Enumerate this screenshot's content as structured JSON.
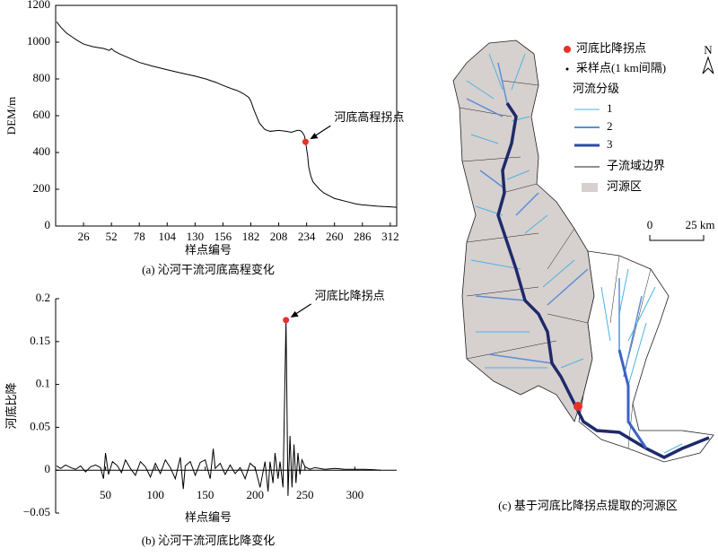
{
  "chart_data": [
    {
      "type": "line",
      "caption": "(a) 沁河干流河底高程变化",
      "ylabel": "DEM/m",
      "xlabel": "样点编号",
      "x": [
        1,
        5,
        10,
        15,
        20,
        26,
        35,
        45,
        50,
        52,
        55,
        60,
        70,
        78,
        90,
        104,
        115,
        130,
        140,
        150,
        156,
        165,
        170,
        175,
        180,
        182,
        185,
        190,
        195,
        200,
        208,
        215,
        220,
        225,
        228,
        230,
        232,
        233,
        234,
        235,
        236,
        238,
        240,
        243,
        246,
        250,
        255,
        260,
        270,
        280,
        286,
        300,
        312,
        318
      ],
      "values": [
        1110,
        1080,
        1050,
        1030,
        1010,
        990,
        975,
        965,
        955,
        965,
        950,
        935,
        910,
        890,
        870,
        850,
        835,
        815,
        800,
        780,
        765,
        745,
        735,
        720,
        700,
        680,
        630,
        560,
        525,
        515,
        520,
        515,
        510,
        520,
        520,
        510,
        490,
        458,
        420,
        380,
        320,
        270,
        240,
        220,
        200,
        180,
        165,
        150,
        135,
        120,
        115,
        108,
        104,
        102
      ],
      "color": "#000000",
      "xlim": [
        0,
        318
      ],
      "xticks": [
        26,
        52,
        78,
        104,
        130,
        156,
        182,
        208,
        234,
        260,
        286,
        312
      ],
      "ylim": [
        0,
        1200
      ],
      "yticks": [
        0,
        200,
        400,
        600,
        800,
        1000,
        1200
      ],
      "annotation": {
        "text": "河底高程拐点",
        "x": 233,
        "y": 458,
        "color": "#e8302a"
      }
    },
    {
      "type": "line",
      "caption": "(b) 沁河干流河底比降变化",
      "ylabel": "河底比降",
      "xlabel": "样点编号",
      "x": [
        1,
        5,
        10,
        15,
        20,
        25,
        30,
        35,
        40,
        45,
        48,
        50,
        53,
        57,
        62,
        66,
        70,
        75,
        80,
        85,
        90,
        95,
        100,
        105,
        110,
        115,
        120,
        125,
        128,
        130,
        135,
        140,
        145,
        150,
        155,
        158,
        160,
        165,
        170,
        175,
        180,
        185,
        190,
        195,
        200,
        205,
        210,
        213,
        215,
        218,
        220,
        223,
        225,
        228,
        231,
        233,
        235,
        237,
        239,
        241,
        243,
        245,
        247,
        250,
        255,
        260,
        270,
        280,
        290,
        300,
        310,
        320,
        326
      ],
      "values": [
        0.005,
        0.002,
        0.006,
        0.003,
        0.001,
        0.005,
        -0.002,
        0.004,
        0.006,
        0.003,
        -0.01,
        0.02,
        -0.005,
        0.01,
        0.005,
        -0.003,
        0.012,
        0.002,
        -0.006,
        0.01,
        0.004,
        -0.008,
        0.008,
        -0.004,
        0.012,
        0.003,
        -0.01,
        0.015,
        -0.022,
        0.005,
        0.01,
        -0.006,
        0.009,
        0.012,
        -0.01,
        0.025,
        0.002,
        0.008,
        -0.005,
        0.006,
        -0.004,
        0.003,
        -0.01,
        0.008,
        0.003,
        -0.02,
        0.01,
        -0.025,
        0.01,
        -0.015,
        0.02,
        -0.01,
        0.01,
        -0.02,
        0.175,
        -0.03,
        0.04,
        -0.02,
        0.03,
        -0.015,
        0.02,
        -0.005,
        0.012,
        0.004,
        0.001,
        0.003,
        0.001,
        0.002,
        0.001,
        0.001,
        0.001,
        0.0005,
        0
      ],
      "color": "#000000",
      "xlim": [
        0,
        342
      ],
      "xticks": [
        50,
        100,
        150,
        200,
        250,
        300
      ],
      "ylim": [
        -0.05,
        0.2
      ],
      "yticks": [
        {
          "value": -0.05,
          "label": "−0.05"
        },
        0,
        0.05,
        0.1,
        0.15,
        0.2
      ],
      "annotation": {
        "text": "河底比降拐点",
        "x": 231,
        "y": 0.175,
        "color": "#e8302a"
      }
    }
  ],
  "map": {
    "caption": "(c) 基于河底比降拐点提取的河源区",
    "north": "N",
    "legend": {
      "point": "河底比降拐点",
      "sample": "采样点(1 km间隔)",
      "order_title": "河流分级",
      "orders": [
        "1",
        "2",
        "3"
      ],
      "boundary": "子流域边界",
      "source": "河源区"
    },
    "scale": [
      "0",
      "25 km"
    ]
  }
}
